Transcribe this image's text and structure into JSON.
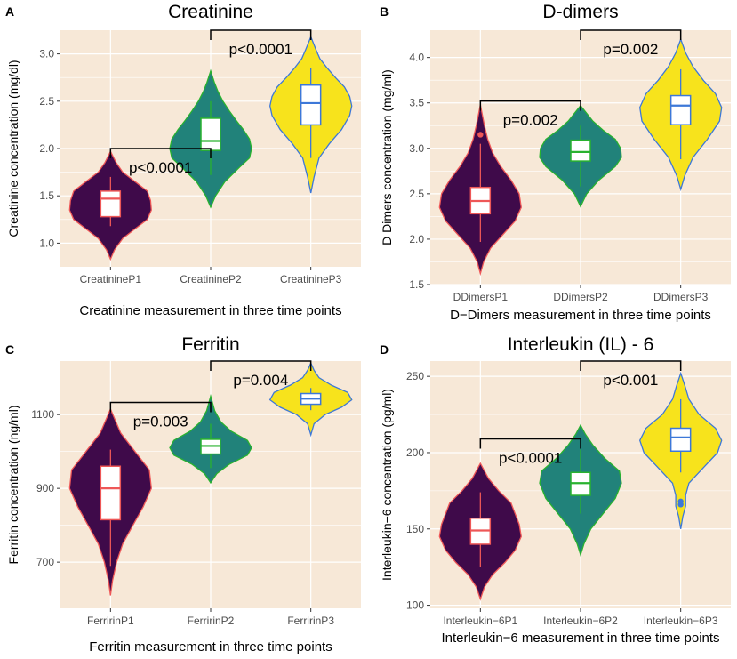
{
  "colors": {
    "panel_bg": "#f7e8d7",
    "grid": "#ffffff",
    "bracket": "#000000",
    "fills": [
      "#3f0a4a",
      "#21827a",
      "#f7e31c"
    ],
    "outlines": [
      "#ee5757",
      "#29b22f",
      "#3d78d8"
    ],
    "box_fill": "#ffffff"
  },
  "chart_data": [
    {
      "type": "violin",
      "panel_letter": "A",
      "title": "Creatinine",
      "xlabel": "Creatinine measurement in three time points",
      "ylabel": "Creatinine concentration (mg/dl)",
      "categories": [
        "CreatinineP1",
        "CreatinineP2",
        "CreatinineP3"
      ],
      "ylim": [
        0.75,
        3.25
      ],
      "yticks": [
        1.0,
        1.5,
        2.0,
        2.5,
        3.0
      ],
      "ytick_labels": [
        "1.0",
        "1.5",
        "2.0",
        "2.5",
        "3.0"
      ],
      "groups": [
        {
          "min": 1.18,
          "q1": 1.28,
          "median": 1.47,
          "q3": 1.55,
          "max": 1.7,
          "vmin": 0.83,
          "vmax": 1.97,
          "outliers": [],
          "density": [
            [
              0.83,
              0.0
            ],
            [
              0.93,
              0.1
            ],
            [
              1.05,
              0.3
            ],
            [
              1.15,
              0.6
            ],
            [
              1.25,
              0.9
            ],
            [
              1.35,
              1.0
            ],
            [
              1.45,
              0.98
            ],
            [
              1.55,
              0.9
            ],
            [
              1.65,
              0.6
            ],
            [
              1.75,
              0.3
            ],
            [
              1.85,
              0.14
            ],
            [
              1.97,
              0.0
            ]
          ]
        },
        {
          "min": 1.72,
          "q1": 1.98,
          "median": 2.08,
          "q3": 2.32,
          "max": 2.5,
          "vmin": 1.38,
          "vmax": 2.82,
          "outliers": [],
          "density": [
            [
              1.38,
              0.0
            ],
            [
              1.5,
              0.12
            ],
            [
              1.65,
              0.35
            ],
            [
              1.8,
              0.7
            ],
            [
              1.9,
              0.95
            ],
            [
              2.0,
              1.0
            ],
            [
              2.1,
              0.95
            ],
            [
              2.2,
              0.8
            ],
            [
              2.3,
              0.62
            ],
            [
              2.4,
              0.45
            ],
            [
              2.5,
              0.3
            ],
            [
              2.6,
              0.18
            ],
            [
              2.7,
              0.09
            ],
            [
              2.82,
              0.0
            ]
          ]
        },
        {
          "min": 1.9,
          "q1": 2.25,
          "median": 2.48,
          "q3": 2.67,
          "max": 2.85,
          "vmin": 1.53,
          "vmax": 3.18,
          "outliers": [],
          "density": [
            [
              1.53,
              0.0
            ],
            [
              1.7,
              0.08
            ],
            [
              1.9,
              0.2
            ],
            [
              2.05,
              0.45
            ],
            [
              2.2,
              0.75
            ],
            [
              2.35,
              0.95
            ],
            [
              2.45,
              1.0
            ],
            [
              2.55,
              0.95
            ],
            [
              2.65,
              0.82
            ],
            [
              2.75,
              0.6
            ],
            [
              2.85,
              0.4
            ],
            [
              2.95,
              0.22
            ],
            [
              3.05,
              0.12
            ],
            [
              3.18,
              0.0
            ]
          ]
        }
      ],
      "comparisons": [
        {
          "from": 0,
          "to": 1,
          "y": 2.0,
          "label": "p<0.0001"
        },
        {
          "from": 1,
          "to": 2,
          "y": 3.25,
          "label": "p<0.0001"
        }
      ]
    },
    {
      "type": "violin",
      "panel_letter": "B",
      "title": "D-dimers",
      "xlabel": "D−Dimers measurement in three time points",
      "ylabel": "D Dimers concentration (mg/ml)",
      "categories": [
        "DDimersP1",
        "DDimersP2",
        "DDimersP3"
      ],
      "ylim": [
        1.5,
        4.3
      ],
      "yticks": [
        1.5,
        2.0,
        2.5,
        3.0,
        3.5,
        4.0
      ],
      "ytick_labels": [
        "1.5",
        "2.0",
        "2.5",
        "3.0",
        "3.5",
        "4.0"
      ],
      "groups": [
        {
          "min": 1.97,
          "q1": 2.28,
          "median": 2.42,
          "q3": 2.57,
          "max": 3.05,
          "vmin": 1.62,
          "vmax": 3.48,
          "outliers": [
            3.15
          ],
          "density": [
            [
              1.62,
              0.0
            ],
            [
              1.75,
              0.08
            ],
            [
              1.9,
              0.25
            ],
            [
              2.05,
              0.55
            ],
            [
              2.2,
              0.85
            ],
            [
              2.35,
              1.0
            ],
            [
              2.5,
              0.95
            ],
            [
              2.65,
              0.75
            ],
            [
              2.8,
              0.5
            ],
            [
              2.95,
              0.3
            ],
            [
              3.1,
              0.18
            ],
            [
              3.25,
              0.1
            ],
            [
              3.48,
              0.0
            ]
          ]
        },
        {
          "min": 2.58,
          "q1": 2.86,
          "median": 2.96,
          "q3": 3.09,
          "max": 3.25,
          "vmin": 2.36,
          "vmax": 3.47,
          "outliers": [],
          "density": [
            [
              2.36,
              0.0
            ],
            [
              2.5,
              0.15
            ],
            [
              2.65,
              0.45
            ],
            [
              2.8,
              0.85
            ],
            [
              2.9,
              1.0
            ],
            [
              3.0,
              0.98
            ],
            [
              3.1,
              0.85
            ],
            [
              3.2,
              0.55
            ],
            [
              3.3,
              0.3
            ],
            [
              3.47,
              0.0
            ]
          ]
        },
        {
          "min": 2.88,
          "q1": 3.26,
          "median": 3.47,
          "q3": 3.58,
          "max": 3.87,
          "vmin": 2.55,
          "vmax": 4.2,
          "outliers": [],
          "density": [
            [
              2.55,
              0.0
            ],
            [
              2.7,
              0.1
            ],
            [
              2.9,
              0.3
            ],
            [
              3.1,
              0.65
            ],
            [
              3.3,
              0.95
            ],
            [
              3.45,
              1.0
            ],
            [
              3.6,
              0.85
            ],
            [
              3.75,
              0.55
            ],
            [
              3.9,
              0.3
            ],
            [
              4.05,
              0.12
            ],
            [
              4.2,
              0.0
            ]
          ]
        }
      ],
      "comparisons": [
        {
          "from": 0,
          "to": 1,
          "y": 3.52,
          "label": "p=0.002"
        },
        {
          "from": 1,
          "to": 2,
          "y": 4.3,
          "label": "p=0.002"
        }
      ]
    },
    {
      "type": "violin",
      "panel_letter": "C",
      "title": "Ferritin",
      "xlabel": "Ferritin measurement in three time points",
      "ylabel": "Ferritin concentration (ng/ml)",
      "categories": [
        "FerririnP1",
        "FerririnP2",
        "FerririnP3"
      ],
      "ylim": [
        575,
        1245
      ],
      "yticks": [
        700,
        900,
        1100
      ],
      "ytick_labels": [
        "700",
        "900",
        "1100"
      ],
      "groups": [
        {
          "min": 690,
          "q1": 815,
          "median": 900,
          "q3": 960,
          "max": 1005,
          "vmin": 610,
          "vmax": 1115,
          "outliers": [],
          "density": [
            [
              610,
              0.0
            ],
            [
              650,
              0.05
            ],
            [
              700,
              0.15
            ],
            [
              750,
              0.3
            ],
            [
              800,
              0.55
            ],
            [
              850,
              0.8
            ],
            [
              900,
              1.0
            ],
            [
              950,
              0.95
            ],
            [
              1000,
              0.6
            ],
            [
              1050,
              0.25
            ],
            [
              1115,
              0.0
            ]
          ]
        },
        {
          "min": 955,
          "q1": 993,
          "median": 1015,
          "q3": 1033,
          "max": 1075,
          "vmin": 915,
          "vmax": 1150,
          "outliers": [],
          "density": [
            [
              915,
              0.0
            ],
            [
              940,
              0.15
            ],
            [
              965,
              0.45
            ],
            [
              990,
              0.9
            ],
            [
              1010,
              1.0
            ],
            [
              1030,
              0.9
            ],
            [
              1055,
              0.5
            ],
            [
              1080,
              0.25
            ],
            [
              1110,
              0.1
            ],
            [
              1150,
              0.0
            ]
          ]
        },
        {
          "min": 1112,
          "q1": 1128,
          "median": 1143,
          "q3": 1157,
          "max": 1172,
          "vmin": 1045,
          "vmax": 1240,
          "outliers": [],
          "density": [
            [
              1045,
              0.0
            ],
            [
              1075,
              0.08
            ],
            [
              1100,
              0.35
            ],
            [
              1120,
              0.75
            ],
            [
              1140,
              1.0
            ],
            [
              1160,
              0.9
            ],
            [
              1180,
              0.5
            ],
            [
              1200,
              0.2
            ],
            [
              1220,
              0.08
            ],
            [
              1240,
              0.0
            ]
          ]
        }
      ],
      "comparisons": [
        {
          "from": 0,
          "to": 1,
          "y": 1133,
          "label": "p=0.003"
        },
        {
          "from": 1,
          "to": 2,
          "y": 1245,
          "label": "p=0.004"
        }
      ]
    },
    {
      "type": "violin",
      "panel_letter": "D",
      "title": "Interleukin (IL) - 6",
      "xlabel": "Interleukin−6  measurement in three time points",
      "ylabel": "Interleukin−6 concentration (pg/ml)",
      "categories": [
        "Interleukin−6P1",
        "Interleukin−6P2",
        "Interleukin−6P3"
      ],
      "ylim": [
        98,
        260
      ],
      "yticks": [
        100,
        150,
        200,
        250
      ],
      "ytick_labels": [
        "100",
        "150",
        "200",
        "250"
      ],
      "groups": [
        {
          "min": 125,
          "q1": 140,
          "median": 149,
          "q3": 157,
          "max": 174,
          "vmin": 104,
          "vmax": 193,
          "outliers": [],
          "density": [
            [
              104,
              0.0
            ],
            [
              112,
              0.1
            ],
            [
              120,
              0.3
            ],
            [
              128,
              0.6
            ],
            [
              136,
              0.85
            ],
            [
              145,
              1.0
            ],
            [
              153,
              0.95
            ],
            [
              160,
              0.85
            ],
            [
              167,
              0.75
            ],
            [
              175,
              0.45
            ],
            [
              183,
              0.2
            ],
            [
              193,
              0.0
            ]
          ]
        },
        {
          "min": 160,
          "q1": 172,
          "median": 180,
          "q3": 187,
          "max": 202,
          "vmin": 133,
          "vmax": 218,
          "outliers": [],
          "density": [
            [
              133,
              0.0
            ],
            [
              140,
              0.08
            ],
            [
              150,
              0.25
            ],
            [
              160,
              0.55
            ],
            [
              170,
              0.85
            ],
            [
              180,
              1.0
            ],
            [
              188,
              0.95
            ],
            [
              196,
              0.6
            ],
            [
              205,
              0.3
            ],
            [
              212,
              0.12
            ],
            [
              218,
              0.0
            ]
          ]
        },
        {
          "min": 187,
          "q1": 201,
          "median": 210,
          "q3": 216,
          "max": 235,
          "vmin": 150,
          "vmax": 252,
          "outliers": [
            166,
            168
          ],
          "density": [
            [
              150,
              0.0
            ],
            [
              158,
              0.05
            ],
            [
              165,
              0.12
            ],
            [
              172,
              0.12
            ],
            [
              180,
              0.2
            ],
            [
              190,
              0.55
            ],
            [
              200,
              0.9
            ],
            [
              208,
              1.0
            ],
            [
              216,
              0.85
            ],
            [
              225,
              0.45
            ],
            [
              235,
              0.2
            ],
            [
              244,
              0.1
            ],
            [
              252,
              0.0
            ]
          ]
        }
      ],
      "comparisons": [
        {
          "from": 0,
          "to": 1,
          "y": 209,
          "label": "p<0.0001"
        },
        {
          "from": 1,
          "to": 2,
          "y": 260,
          "label": "p<0.001"
        }
      ]
    }
  ]
}
